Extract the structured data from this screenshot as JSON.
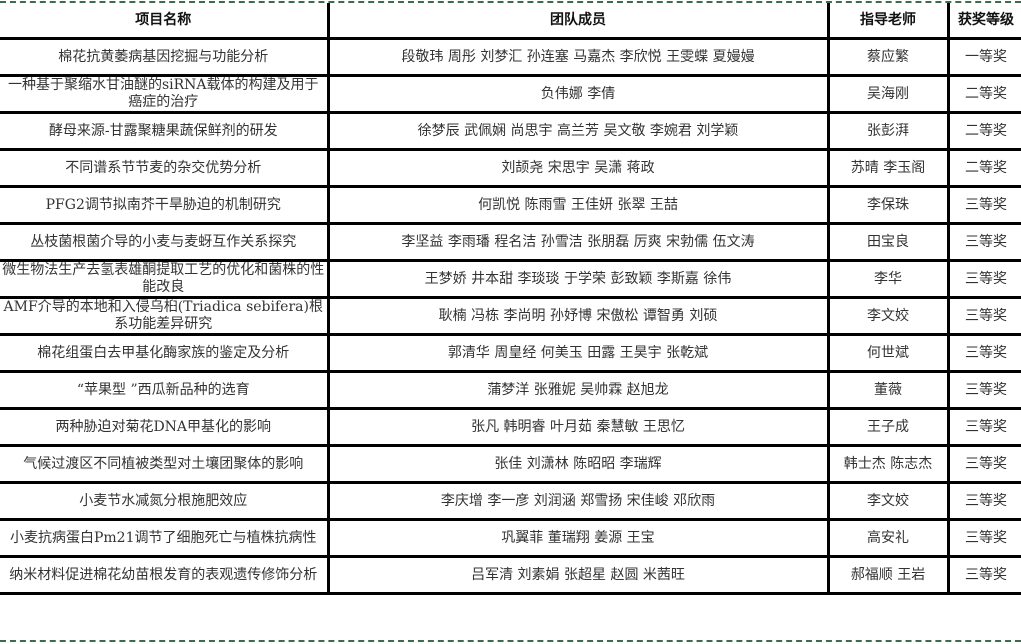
{
  "headers": [
    "项目名称",
    "团队成员",
    "指导老师",
    "获奖等级"
  ],
  "rows": [
    [
      "棉花抗黄萎病基因挖掘与功能分析",
      "段敬玮 周彤 刘梦汇 孙连塞 马嘉杰 李欣悦 王雯蝶 夏嫚嫚",
      "蔡应繁",
      "一等奖"
    ],
    [
      "一种基于聚缩水甘油醚的siRNA载体的构建及用于癌症的治疗",
      "负伟娜 李倩",
      "吴海刚",
      "二等奖"
    ],
    [
      "酵母来源-甘露聚糖果蔬保鲜剂的研发",
      "徐梦辰 武佩娴 尚思宇 高兰芳 吴文敬 李婉君 刘学颖",
      "张彭湃",
      "二等奖"
    ],
    [
      "不同谱系节节麦的杂交优势分析",
      "刘颉尧 宋思宇 吴潇 蒋政",
      "苏晴 李玉阁",
      "二等奖"
    ],
    [
      "PFG2调节拟南芥干旱胁迫的机制研究",
      "何凯悦 陈雨雪 王佳妍 张翠 王喆",
      "李保珠",
      "三等奖"
    ],
    [
      "丛枝菌根菌介导的小麦与麦蚜互作关系探究",
      "李坚益 李雨璠 程名洁 孙雪洁 张朋磊 厉爽 宋勃儒 伍文涛",
      "田宝良",
      "三等奖"
    ],
    [
      "微生物法生产去氢表雄酮提取工艺的优化和菌株的性能改良",
      "王梦娇 井本甜 李琰琰 于学荣 彭致颖 李斯嘉 徐伟",
      "李华",
      "三等奖"
    ],
    [
      "AMF介导的本地和入侵乌桕(Triadica sebifera)根系功能差异研究",
      "耿楠 冯栋 李尚明 孙妤博 宋傲松 谭智勇 刘硕",
      "李文姣",
      "三等奖"
    ],
    [
      "棉花组蛋白去甲基化酶家族的鉴定及分析",
      "郭清华 周皇经 何美玉 田露 王昊宇 张乾斌",
      "何世斌",
      "三等奖"
    ],
    [
      "“苹果型 ”西瓜新品种的选育",
      "蒲梦洋 张雅妮 吴帅霖 赵旭龙",
      "董薇",
      "三等奖"
    ],
    [
      "两种胁迫对菊花DNA甲基化的影响",
      "张凡 韩明睿 叶月茹 秦慧敏 王思忆",
      "王子成",
      "三等奖"
    ],
    [
      "气候过渡区不同植被类型对土壤团聚体的影响",
      "张佳 刘潇林 陈昭昭 李瑞辉",
      "韩士杰 陈志杰",
      "三等奖"
    ],
    [
      "小麦节水减氮分根施肥效应",
      "李庆增 李一彦 刘润涵 郑雪扬 宋佳峻 邓欣雨",
      "李文姣",
      "三等奖"
    ],
    [
      "小麦抗病蛋白Pm21调节了细胞死亡与植株抗病性",
      "巩翼菲 董瑞翔 姜源 王宝",
      "高安礼",
      "三等奖"
    ],
    [
      "纳米材料促进棉花幼苗根发育的表观遗传修饰分析",
      "吕军清 刘素娟 张超星 赵圆 米茜旺",
      "郝福顺 王岩",
      "三等奖"
    ]
  ],
  "colors": {
    "border": "#000000",
    "text": "#333333",
    "dashed_border": "#3d6b4f"
  }
}
